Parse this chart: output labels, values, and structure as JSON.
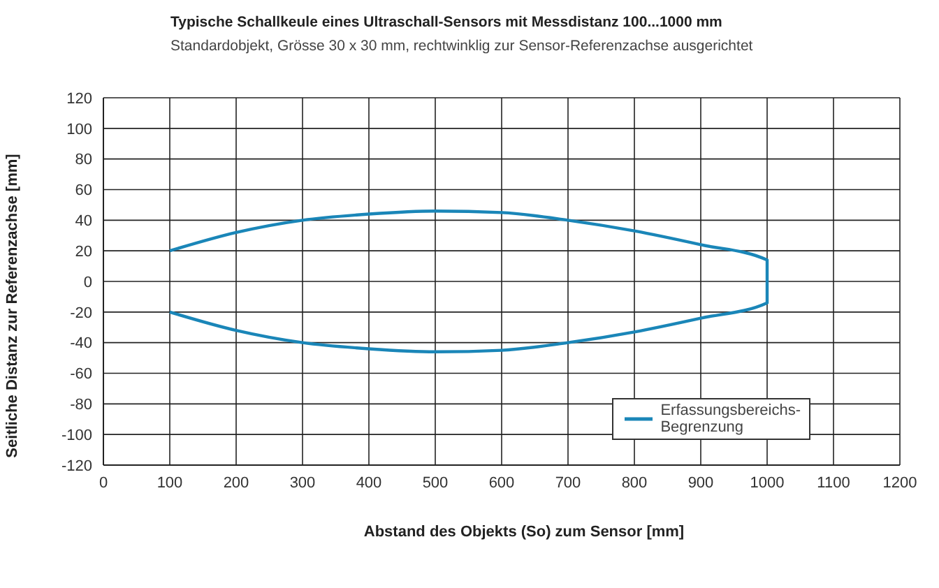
{
  "chart_data": {
    "type": "line",
    "title": "Typische Schallkeule eines Ultraschall-Sensors mit Messdistanz 100...1000 mm",
    "subtitle": "Standardobjekt, Grösse  30 x 30 mm, rechtwinklig zur Sensor-Referenzachse ausgerichtet",
    "xlabel": "Abstand des Objekts (So) zum Sensor [mm]",
    "ylabel": "Seitliche Distanz zur Referenzachse [mm]",
    "x": [
      100,
      200,
      300,
      400,
      500,
      600,
      700,
      800,
      900,
      1000,
      1000,
      900,
      800,
      700,
      600,
      500,
      400,
      300,
      200,
      100
    ],
    "series": [
      {
        "name": "Erfassungsbereichs-\nBegrenzung",
        "color": "#1a86b8",
        "values": [
          20,
          32,
          40,
          44,
          46,
          45,
          40,
          33,
          24,
          14,
          -14,
          -24,
          -33,
          -40,
          -45,
          -46,
          -44,
          -40,
          -32,
          -20
        ]
      }
    ],
    "xlim": [
      0,
      1200
    ],
    "xticks": [
      0,
      100,
      200,
      300,
      400,
      500,
      600,
      700,
      800,
      900,
      1000,
      1100,
      1200
    ],
    "ylim": [
      -120,
      120
    ],
    "yticks": [
      -120,
      -100,
      -80,
      -60,
      -40,
      -20,
      0,
      20,
      40,
      60,
      80,
      100,
      120
    ],
    "grid": true,
    "legend": "bottom right",
    "marker": "none",
    "line_style": "solid"
  }
}
